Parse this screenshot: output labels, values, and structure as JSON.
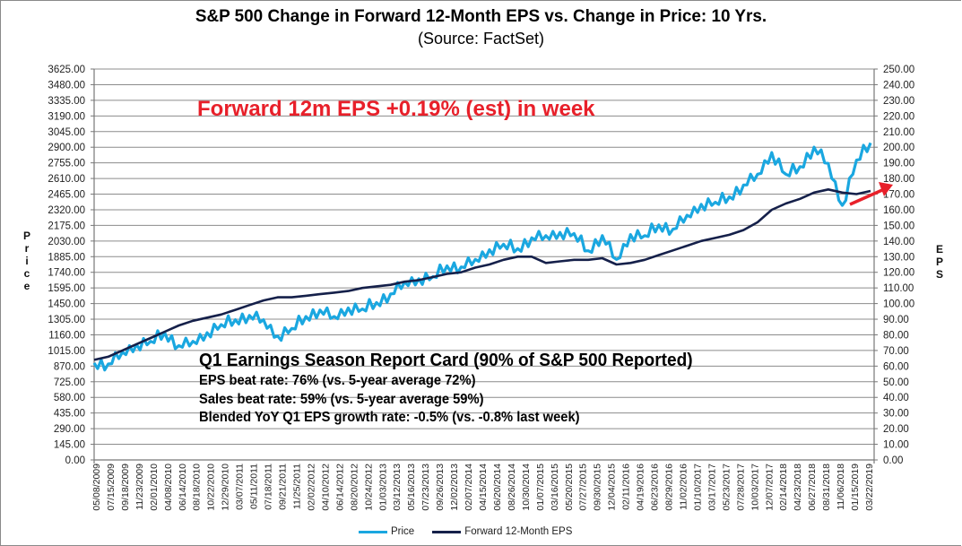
{
  "chart_data": {
    "type": "line",
    "title": "S&P 500 Change in Forward 12-Month EPS vs. Change in Price: 10 Yrs.",
    "subtitle": "(Source: FactSet)",
    "ylabel_left": "Price",
    "ylabel_right": "EPS",
    "xlabel": "",
    "y_left_lim": [
      0,
      3625
    ],
    "y_right_lim": [
      0,
      250
    ],
    "y_left_ticks": [
      "0.00",
      "145.00",
      "290.00",
      "435.00",
      "580.00",
      "725.00",
      "870.00",
      "1015.00",
      "1160.00",
      "1305.00",
      "1450.00",
      "1595.00",
      "1740.00",
      "1885.00",
      "2030.00",
      "2175.00",
      "2320.00",
      "2465.00",
      "2610.00",
      "2755.00",
      "2900.00",
      "3045.00",
      "3190.00",
      "3335.00",
      "3480.00",
      "3625.00"
    ],
    "y_right_ticks": [
      "0.00",
      "10.00",
      "20.00",
      "30.00",
      "40.00",
      "50.00",
      "60.00",
      "70.00",
      "80.00",
      "90.00",
      "100.00",
      "110.00",
      "120.00",
      "130.00",
      "140.00",
      "150.00",
      "160.00",
      "170.00",
      "180.00",
      "190.00",
      "200.00",
      "210.00",
      "220.00",
      "230.00",
      "240.00",
      "250.00"
    ],
    "x_ticks": [
      "05/08/2009",
      "07/15/2009",
      "09/18/2009",
      "11/23/2009",
      "02/01/2010",
      "04/08/2010",
      "06/14/2010",
      "08/18/2010",
      "10/22/2010",
      "12/29/2010",
      "03/07/2011",
      "05/11/2011",
      "07/18/2011",
      "09/21/2011",
      "11/25/2011",
      "02/02/2012",
      "04/10/2012",
      "06/14/2012",
      "08/20/2012",
      "10/24/2012",
      "01/03/2013",
      "03/12/2013",
      "05/16/2013",
      "07/23/2013",
      "09/26/2013",
      "12/02/2013",
      "02/07/2014",
      "04/15/2014",
      "06/20/2014",
      "08/26/2014",
      "10/30/2014",
      "01/07/2015",
      "03/16/2015",
      "05/20/2015",
      "07/27/2015",
      "09/30/2015",
      "12/04/2015",
      "02/11/2016",
      "04/19/2016",
      "06/23/2016",
      "08/29/2016",
      "11/02/2016",
      "01/10/2017",
      "03/17/2017",
      "05/23/2017",
      "07/28/2017",
      "10/03/2017",
      "12/07/2017",
      "02/14/2018",
      "04/23/2018",
      "06/27/2018",
      "08/31/2018",
      "11/06/2018",
      "01/15/2019",
      "03/22/2019"
    ],
    "grid": true,
    "legend_position": "bottom",
    "series": [
      {
        "name": "Price",
        "axis": "left",
        "color": "#1aa7e0",
        "x": [
          0,
          1,
          2,
          3,
          4,
          5,
          6,
          7,
          8,
          9,
          10,
          11,
          12,
          13,
          14,
          15,
          16,
          17,
          18,
          19,
          20,
          21,
          22,
          23,
          24,
          25,
          26,
          27,
          28,
          29,
          30,
          31,
          32,
          33,
          34,
          35,
          36,
          37,
          38,
          39,
          40,
          41,
          42,
          43,
          44,
          45,
          46,
          47,
          48,
          49,
          50,
          51,
          52,
          53,
          54,
          55
        ],
        "values": [
          900,
          890,
          1000,
          1070,
          1100,
          1180,
          1060,
          1100,
          1180,
          1255,
          1300,
          1340,
          1300,
          1150,
          1220,
          1330,
          1390,
          1330,
          1410,
          1400,
          1460,
          1540,
          1650,
          1680,
          1700,
          1800,
          1790,
          1860,
          1950,
          2000,
          1960,
          2060,
          2080,
          2110,
          2100,
          1940,
          2080,
          1860,
          2090,
          2080,
          2180,
          2140,
          2270,
          2370,
          2390,
          2440,
          2550,
          2650,
          2850,
          2650,
          2720,
          2900,
          2750,
          2360,
          2780,
          2940
        ]
      },
      {
        "name": "Forward 12-Month EPS",
        "axis": "right",
        "color": "#15204a",
        "x": [
          0,
          1,
          2,
          3,
          4,
          5,
          6,
          7,
          8,
          9,
          10,
          11,
          12,
          13,
          14,
          15,
          16,
          17,
          18,
          19,
          20,
          21,
          22,
          23,
          24,
          25,
          26,
          27,
          28,
          29,
          30,
          31,
          32,
          33,
          34,
          35,
          36,
          37,
          38,
          39,
          40,
          41,
          42,
          43,
          44,
          45,
          46,
          47,
          48,
          49,
          50,
          51,
          52,
          53,
          54,
          55
        ],
        "values": [
          64,
          66,
          70,
          74,
          78,
          82,
          86,
          89,
          91,
          93,
          96,
          99,
          102,
          104,
          104,
          105,
          106,
          107,
          108,
          110,
          111,
          112,
          114,
          115,
          117,
          119,
          120,
          123,
          125,
          128,
          130,
          130,
          126,
          127,
          128,
          128,
          129,
          125,
          126,
          128,
          131,
          134,
          137,
          140,
          142,
          144,
          147,
          152,
          160,
          164,
          167,
          171,
          173,
          171,
          170,
          172
        ]
      }
    ],
    "annotations": [
      {
        "text": "Forward 12m EPS +0.19% (est) in week",
        "color": "#e8202a",
        "position": "upper-left"
      },
      {
        "text": "Q1 Earnings Season Report Card (90% of S&P 500 Reported)",
        "position": "lower-center",
        "style": "heading"
      },
      {
        "text": "EPS beat rate: 76% (vs. 5-year average 72%)",
        "position": "lower-center"
      },
      {
        "text": "Sales beat rate: 59% (vs. 5-year average 59%)",
        "position": "lower-center"
      },
      {
        "text": "Blended YoY Q1 EPS growth rate: -0.5% (vs. -0.8% last week)",
        "position": "lower-center"
      },
      {
        "type": "arrow",
        "color": "#e8202a",
        "points_to": "EPS right axis near 170.00"
      }
    ]
  },
  "legend": [
    {
      "label": "Price",
      "color": "#1aa7e0"
    },
    {
      "label": "Forward 12-Month EPS",
      "color": "#15204a"
    }
  ],
  "axis_letters": {
    "left": [
      "P",
      "r",
      "i",
      "c",
      "e"
    ],
    "right": [
      "E",
      "P",
      "S"
    ]
  }
}
